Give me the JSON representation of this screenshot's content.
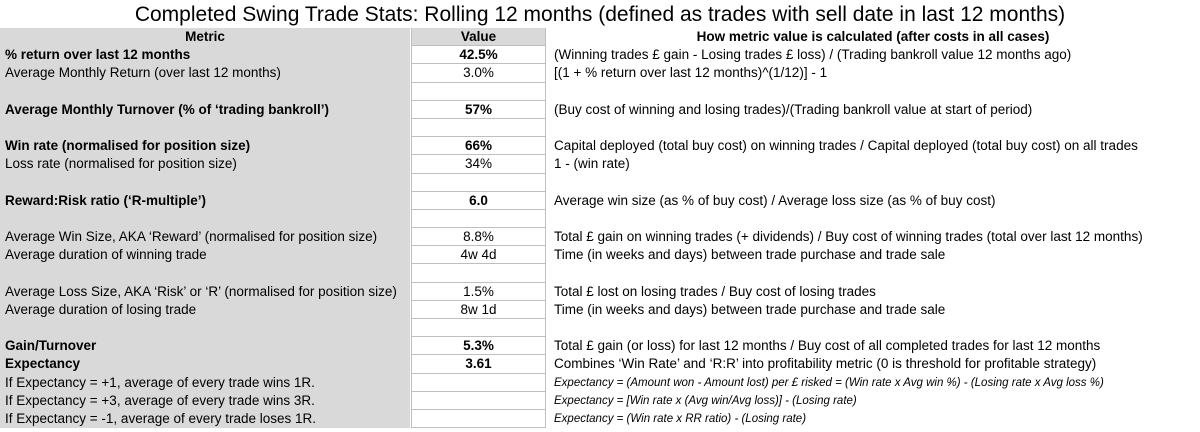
{
  "title": "Completed Swing Trade Stats: Rolling 12 months (defined as trades with sell date in last 12 months)",
  "columns": {
    "metric": "Metric",
    "value": "Value",
    "how": "How metric value is calculated (after costs in all cases)"
  },
  "rows": [
    {
      "metric": "% return over last 12 months",
      "value": "42.5%",
      "how": "(Winning trades £ gain - Losing trades £ loss) / (Trading bankroll value 12 months ago)",
      "bold": true
    },
    {
      "metric": "Average Monthly Return (over last 12 months)",
      "value": "3.0%",
      "how": "[(1 + % return over last 12 months)^(1/12)] - 1"
    },
    {
      "metric": "",
      "value": "",
      "how": ""
    },
    {
      "metric": "Average Monthly Turnover (% of ‘trading bankroll’)",
      "value": "57%",
      "how": "(Buy cost of winning and losing trades)/(Trading bankroll value at start of period)",
      "bold": true
    },
    {
      "metric": "",
      "value": "",
      "how": ""
    },
    {
      "metric": "Win rate (normalised for position size)",
      "value": "66%",
      "how": "Capital deployed (total buy cost) on winning trades / Capital deployed (total buy cost) on all trades",
      "bold": true
    },
    {
      "metric": "Loss rate (normalised for position size)",
      "value": "34%",
      "how": "1 - (win rate)"
    },
    {
      "metric": "",
      "value": "",
      "how": ""
    },
    {
      "metric": "Reward:Risk ratio (‘R-multiple’)",
      "value": "6.0",
      "how": "Average win size (as % of buy cost) / Average loss size (as % of buy cost)",
      "bold": true
    },
    {
      "metric": "",
      "value": "",
      "how": ""
    },
    {
      "metric": "Average Win Size, AKA ‘Reward’ (normalised for position size)",
      "value": "8.8%",
      "how": "Total £ gain on winning trades (+ dividends) / Buy cost of winning trades (total over last 12 months)"
    },
    {
      "metric": "Average duration of winning trade",
      "value": "4w 4d",
      "how": "Time (in weeks and days) between trade purchase and trade sale"
    },
    {
      "metric": "",
      "value": "",
      "how": ""
    },
    {
      "metric": "Average Loss Size, AKA ‘Risk’ or ‘R’ (normalised for position size)",
      "value": "1.5%",
      "how": "Total £ lost on losing trades / Buy cost of losing trades"
    },
    {
      "metric": "Average duration of losing trade",
      "value": "8w 1d",
      "how": "Time (in weeks and days) between trade purchase and trade sale"
    },
    {
      "metric": "",
      "value": "",
      "how": ""
    },
    {
      "metric": "Gain/Turnover",
      "value": "5.3%",
      "how": "Total £ gain (or loss) for last 12 months / Buy cost of all completed trades for last 12 months",
      "bold": true
    },
    {
      "metric": "Expectancy",
      "value": "3.61",
      "how": "Combines ‘Win Rate’ and ‘R:R’ into profitability metric (0 is threshold for profitable strategy)",
      "bold": true
    },
    {
      "metric": "If Expectancy = +1, average of every trade wins 1R.",
      "value": "",
      "how": "Expectancy = (Amount won - Amount lost) per £ risked = (Win rate x Avg win %) - (Losing rate x Avg loss %)",
      "italic": true
    },
    {
      "metric": "If Expectancy = +3, average of every trade wins 3R.",
      "value": "",
      "how": "Expectancy = [Win rate x (Avg win/Avg loss)] - (Losing rate)",
      "italic": true
    },
    {
      "metric": "If Expectancy = -1, average of every trade loses 1R.",
      "value": "",
      "how": "Expectancy = (Win rate x RR ratio) - (Losing rate)",
      "italic": true
    }
  ]
}
